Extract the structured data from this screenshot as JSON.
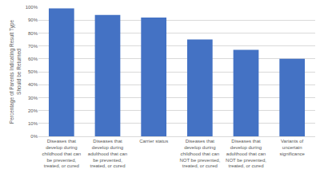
{
  "chart_data": {
    "type": "bar",
    "y_label": "Percentage of Parents Indicating Result Type Should be Returned",
    "categories": [
      "Diseases that develop during childhood that can be prevented, treated, or cured",
      "Diseases that develop during adulthood that can be prevented, treated, or cured",
      "Carrier status",
      "Diseases that develop during childhood that can NOT be prevented, treated, or cured",
      "Diseases that develop during adulthood that can NOT be prevented, treated, or cured",
      "Variants of uncertain significance"
    ],
    "values": [
      99,
      94,
      92,
      75,
      67,
      60
    ],
    "color": "#4472c4",
    "ylim": [
      0,
      100
    ],
    "yticks": [
      {
        "value": 0,
        "label": "0%"
      },
      {
        "value": 10,
        "label": "10%"
      },
      {
        "value": 20,
        "label": "20%"
      },
      {
        "value": 30,
        "label": "30%"
      },
      {
        "value": 40,
        "label": "40%"
      },
      {
        "value": 50,
        "label": "50%"
      },
      {
        "value": 60,
        "label": "60%"
      },
      {
        "value": 70,
        "label": "70%"
      },
      {
        "value": 80,
        "label": "80%"
      },
      {
        "value": 90,
        "label": "90%"
      },
      {
        "value": 100,
        "label": "100%"
      }
    ],
    "grid": true
  }
}
